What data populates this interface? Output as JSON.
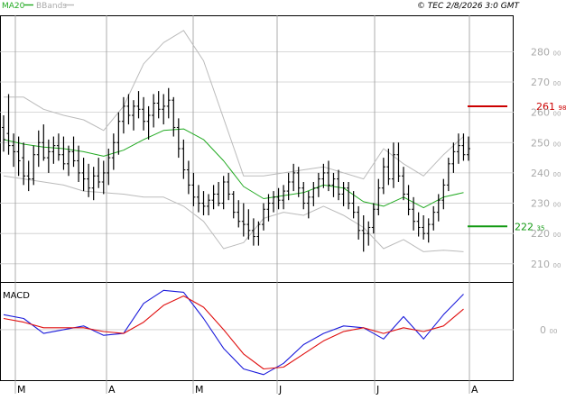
{
  "header": {
    "legend_ma": "MA20",
    "legend_bb": "BBands",
    "timestamp": "© TEC 2/8/2026 3:0 GMT"
  },
  "colors": {
    "ma": "#22aa22",
    "bbands": "#bbbbbb",
    "price": "#000000",
    "macd": "#1a1adb",
    "signal": "#e01010",
    "resistance": "#cc0000",
    "support": "#119911",
    "grid": "#cccccc",
    "axis_text": "#aaaaaa"
  },
  "chart_data": [
    {
      "type": "ohlc",
      "title": "",
      "ylim": [
        204,
        292
      ],
      "y_ticks": [
        210,
        220,
        230,
        240,
        250,
        260,
        270,
        280
      ],
      "y_tick_labels": [
        "210 00",
        "220 00",
        "230 00",
        "240 00",
        "250 00",
        "260 00",
        "270 00",
        "280 00"
      ],
      "x_ticks": [
        "M",
        "A",
        "M",
        "J",
        "J",
        "A"
      ],
      "x_tick_labels": [
        "M",
        "A",
        "M",
        "J",
        "J",
        "A"
      ],
      "grid": true,
      "levels": [
        {
          "label_int": "261",
          "label_dec": "98",
          "value": 261.98,
          "role": "resistance"
        },
        {
          "label_int": "222",
          "label_dec": "35",
          "value": 222.35,
          "role": "support"
        }
      ],
      "price": [
        [
          255,
          259,
          247,
          251
        ],
        [
          253,
          266,
          246,
          249
        ],
        [
          249,
          253,
          242,
          247
        ],
        [
          247,
          252,
          239,
          244
        ],
        [
          245,
          250,
          236,
          239
        ],
        [
          239,
          244,
          234,
          238
        ],
        [
          238,
          249,
          236,
          246
        ],
        [
          246,
          254,
          242,
          250
        ],
        [
          250,
          256,
          244,
          245
        ],
        [
          245,
          251,
          240,
          247
        ],
        [
          247,
          252,
          243,
          249
        ],
        [
          249,
          253,
          244,
          246
        ],
        [
          246,
          252,
          241,
          243
        ],
        [
          243,
          249,
          239,
          247
        ],
        [
          247,
          252,
          242,
          244
        ],
        [
          244,
          249,
          237,
          240
        ],
        [
          240,
          245,
          234,
          238
        ],
        [
          238,
          243,
          232,
          235
        ],
        [
          235,
          242,
          231,
          239
        ],
        [
          239,
          245,
          235,
          237
        ],
        [
          237,
          244,
          233,
          240
        ],
        [
          240,
          248,
          236,
          245
        ],
        [
          245,
          253,
          241,
          250
        ],
        [
          250,
          260,
          246,
          257
        ],
        [
          257,
          265,
          253,
          262
        ],
        [
          262,
          266,
          256,
          259
        ],
        [
          259,
          264,
          254,
          262
        ],
        [
          262,
          267,
          258,
          261
        ],
        [
          261,
          265,
          254,
          257
        ],
        [
          257,
          262,
          251,
          259
        ],
        [
          259,
          266,
          255,
          263
        ],
        [
          263,
          267,
          258,
          261
        ],
        [
          261,
          266,
          256,
          262
        ],
        [
          262,
          268,
          258,
          264
        ],
        [
          264,
          265,
          252,
          255
        ],
        [
          255,
          258,
          245,
          248
        ],
        [
          248,
          251,
          238,
          241
        ],
        [
          241,
          244,
          233,
          236
        ],
        [
          236,
          240,
          229,
          232
        ],
        [
          232,
          236,
          227,
          230
        ],
        [
          230,
          234,
          226,
          229
        ],
        [
          229,
          233,
          226,
          231
        ],
        [
          231,
          236,
          228,
          233
        ],
        [
          233,
          237,
          229,
          230
        ],
        [
          230,
          239,
          228,
          237
        ],
        [
          237,
          240,
          231,
          233
        ],
        [
          233,
          234,
          225,
          227
        ],
        [
          227,
          231,
          222,
          224
        ],
        [
          224,
          230,
          219,
          223
        ],
        [
          223,
          228,
          218,
          221
        ],
        [
          221,
          225,
          216,
          219
        ],
        [
          219,
          224,
          216,
          223
        ],
        [
          223,
          230,
          221,
          228
        ],
        [
          228,
          233,
          224,
          230
        ],
        [
          230,
          234,
          227,
          232
        ],
        [
          232,
          235,
          228,
          231
        ],
        [
          231,
          236,
          228,
          234
        ],
        [
          234,
          240,
          231,
          237
        ],
        [
          237,
          243,
          234,
          240
        ],
        [
          240,
          242,
          232,
          235
        ],
        [
          235,
          237,
          228,
          230
        ],
        [
          230,
          234,
          225,
          232
        ],
        [
          232,
          237,
          229,
          235
        ],
        [
          235,
          240,
          232,
          238
        ],
        [
          238,
          243,
          235,
          240
        ],
        [
          240,
          244,
          234,
          236
        ],
        [
          236,
          240,
          232,
          238
        ],
        [
          238,
          241,
          231,
          233
        ],
        [
          233,
          237,
          229,
          235
        ],
        [
          235,
          237,
          228,
          230
        ],
        [
          230,
          234,
          225,
          227
        ],
        [
          227,
          229,
          218,
          221
        ],
        [
          221,
          226,
          214,
          220
        ],
        [
          220,
          224,
          216,
          222
        ],
        [
          222,
          230,
          220,
          228
        ],
        [
          228,
          238,
          226,
          235
        ],
        [
          235,
          245,
          233,
          242
        ],
        [
          242,
          248,
          236,
          238
        ],
        [
          238,
          250,
          235,
          246
        ],
        [
          246,
          250,
          237,
          239
        ],
        [
          239,
          242,
          231,
          233
        ],
        [
          233,
          236,
          226,
          228
        ],
        [
          228,
          232,
          221,
          224
        ],
        [
          224,
          227,
          219,
          222
        ],
        [
          222,
          226,
          218,
          220
        ],
        [
          220,
          225,
          217,
          223
        ],
        [
          223,
          229,
          221,
          227
        ],
        [
          227,
          233,
          224,
          231
        ],
        [
          231,
          238,
          228,
          236
        ],
        [
          236,
          245,
          234,
          243
        ],
        [
          243,
          250,
          240,
          247
        ],
        [
          247,
          253,
          243,
          249
        ],
        [
          249,
          253,
          244,
          246
        ],
        [
          246,
          252,
          244,
          248
        ]
      ],
      "ma20": [
        [
          0,
          251
        ],
        [
          4,
          249.5
        ],
        [
          8,
          248.5
        ],
        [
          12,
          248
        ],
        [
          16,
          247
        ],
        [
          20,
          245.5
        ],
        [
          24,
          247.5
        ],
        [
          28,
          251
        ],
        [
          32,
          254
        ],
        [
          36,
          254.5
        ],
        [
          40,
          251
        ],
        [
          44,
          244
        ],
        [
          48,
          235.5
        ],
        [
          52,
          231.5
        ],
        [
          56,
          232.5
        ],
        [
          60,
          233.5
        ],
        [
          64,
          236
        ],
        [
          68,
          235
        ],
        [
          72,
          230.5
        ],
        [
          76,
          229
        ],
        [
          80,
          232
        ],
        [
          84,
          228.5
        ],
        [
          88,
          232
        ],
        [
          92,
          233.5
        ]
      ],
      "bb_upper": [
        [
          0,
          265
        ],
        [
          4,
          265
        ],
        [
          8,
          261
        ],
        [
          12,
          259
        ],
        [
          16,
          257.5
        ],
        [
          20,
          254
        ],
        [
          24,
          262
        ],
        [
          28,
          276
        ],
        [
          32,
          283
        ],
        [
          36,
          287
        ],
        [
          40,
          277
        ],
        [
          44,
          258
        ],
        [
          48,
          239
        ],
        [
          52,
          239
        ],
        [
          56,
          240
        ],
        [
          60,
          241
        ],
        [
          64,
          242
        ],
        [
          68,
          240
        ],
        [
          72,
          238
        ],
        [
          76,
          248
        ],
        [
          80,
          243
        ],
        [
          84,
          239
        ],
        [
          88,
          246
        ],
        [
          92,
          252
        ]
      ],
      "bb_lower": [
        [
          0,
          239
        ],
        [
          4,
          238
        ],
        [
          8,
          237
        ],
        [
          12,
          236
        ],
        [
          16,
          234
        ],
        [
          20,
          233.5
        ],
        [
          24,
          233
        ],
        [
          28,
          232
        ],
        [
          32,
          232
        ],
        [
          36,
          229
        ],
        [
          40,
          224
        ],
        [
          44,
          215
        ],
        [
          48,
          217
        ],
        [
          52,
          225
        ],
        [
          56,
          227
        ],
        [
          60,
          226
        ],
        [
          64,
          229
        ],
        [
          68,
          226
        ],
        [
          72,
          222
        ],
        [
          76,
          215
        ],
        [
          80,
          218
        ],
        [
          84,
          214
        ],
        [
          88,
          214.5
        ],
        [
          92,
          214
        ]
      ]
    },
    {
      "type": "line",
      "title": "MACD",
      "ylim": [
        -2.7,
        2.5
      ],
      "y_ticks": [
        0
      ],
      "y_tick_labels": [
        "0 00"
      ],
      "series": [
        {
          "name": "",
          "role": "macd",
          "points": [
            [
              0,
              0.8
            ],
            [
              4,
              0.6
            ],
            [
              8,
              -0.2
            ],
            [
              12,
              0
            ],
            [
              16,
              0.2
            ],
            [
              20,
              -0.3
            ],
            [
              24,
              -0.2
            ],
            [
              28,
              1.4
            ],
            [
              32,
              2.1
            ],
            [
              36,
              2
            ],
            [
              40,
              0.6
            ],
            [
              44,
              -1
            ],
            [
              48,
              -2.1
            ],
            [
              52,
              -2.4
            ],
            [
              56,
              -1.8
            ],
            [
              60,
              -0.8
            ],
            [
              64,
              -0.2
            ],
            [
              68,
              0.2
            ],
            [
              72,
              0.1
            ],
            [
              76,
              -0.5
            ],
            [
              80,
              0.7
            ],
            [
              84,
              -0.5
            ],
            [
              88,
              0.8
            ],
            [
              92,
              1.9
            ]
          ]
        },
        {
          "name": "",
          "role": "signal",
          "points": [
            [
              0,
              0.6
            ],
            [
              4,
              0.4
            ],
            [
              8,
              0.1
            ],
            [
              12,
              0.1
            ],
            [
              16,
              0.1
            ],
            [
              20,
              -0.1
            ],
            [
              24,
              -0.2
            ],
            [
              28,
              0.4
            ],
            [
              32,
              1.3
            ],
            [
              36,
              1.8
            ],
            [
              40,
              1.2
            ],
            [
              44,
              0
            ],
            [
              48,
              -1.3
            ],
            [
              52,
              -2.1
            ],
            [
              56,
              -2
            ],
            [
              60,
              -1.3
            ],
            [
              64,
              -0.6
            ],
            [
              68,
              -0.1
            ],
            [
              72,
              0.1
            ],
            [
              76,
              -0.2
            ],
            [
              80,
              0.1
            ],
            [
              84,
              -0.1
            ],
            [
              88,
              0.2
            ],
            [
              92,
              1.1
            ]
          ]
        }
      ]
    }
  ]
}
